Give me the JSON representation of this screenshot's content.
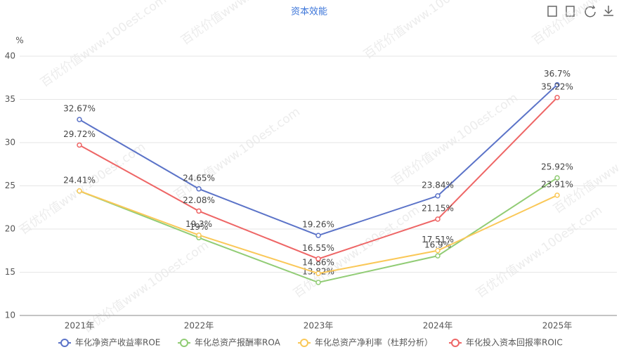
{
  "chart_data": {
    "type": "line",
    "title": "资本效能",
    "y_unit": "%",
    "watermark": "百优价值www.100est.com",
    "categories": [
      "2021年",
      "2022年",
      "2023年",
      "2024年",
      "2025年"
    ],
    "ylim": [
      10,
      40
    ],
    "yticks": [
      10,
      15,
      20,
      25,
      30,
      35,
      40
    ],
    "grid": true,
    "series": [
      {
        "name": "年化净资产收益率ROE",
        "color": "#5b73c8",
        "values": [
          32.67,
          24.65,
          19.26,
          23.84,
          36.7
        ],
        "value_labels": [
          "32.67%",
          "24.65%",
          "19.26%",
          "23.84%",
          "36.7%"
        ]
      },
      {
        "name": "年化总资产报酬率ROA",
        "color": "#91cc75",
        "values": [
          24.4,
          19,
          13.82,
          16.9,
          25.92
        ],
        "value_labels": [
          null,
          "19%",
          "13.82%",
          "16.9%",
          "25.92%"
        ]
      },
      {
        "name": "年化总资产净利率（杜邦分析）",
        "color": "#fac858",
        "values": [
          24.41,
          19.3,
          14.86,
          17.51,
          23.91
        ],
        "value_labels": [
          "24.41%",
          "19.3%",
          "14.86%",
          "17.51%",
          "23.91%"
        ]
      },
      {
        "name": "年化投入资本回报率ROIC",
        "color": "#ee6666",
        "values": [
          29.72,
          22.08,
          16.55,
          21.15,
          35.22
        ],
        "value_labels": [
          "29.72%",
          "22.08%",
          "16.55%",
          "21.15%",
          "35.22%"
        ]
      }
    ]
  }
}
